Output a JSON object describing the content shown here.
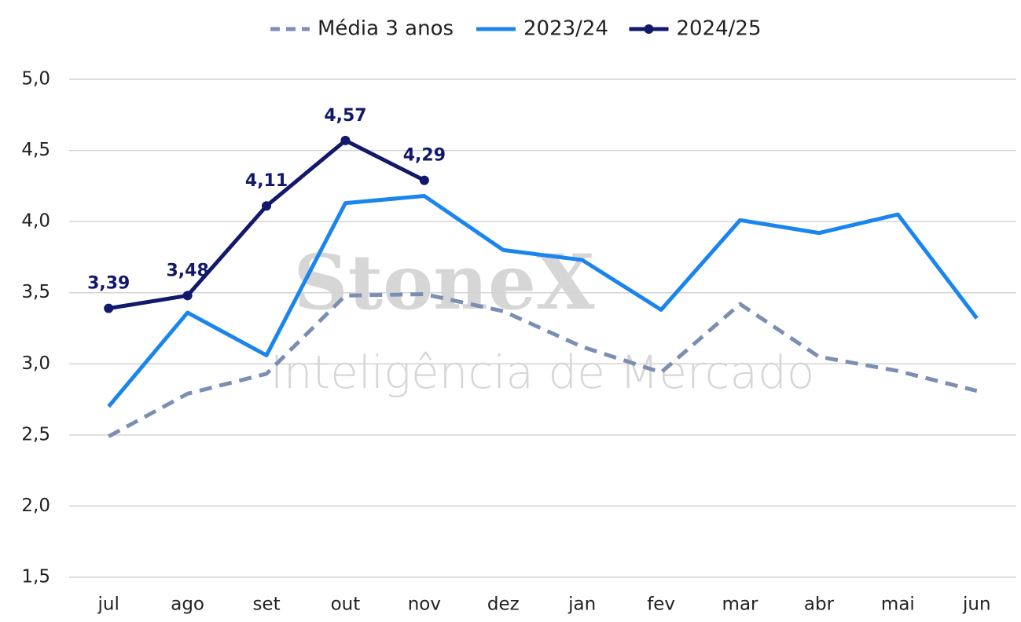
{
  "chart_data": {
    "type": "line",
    "watermark": {
      "brand": "StoneX",
      "tagline": "Inteligência de Mercado"
    },
    "categories": [
      "jul",
      "ago",
      "set",
      "out",
      "nov",
      "dez",
      "jan",
      "fev",
      "mar",
      "abr",
      "mai",
      "jun"
    ],
    "series": [
      {
        "name": "Média 3 anos",
        "color": "#7a8fb3",
        "dashed": true,
        "markers": false,
        "values": [
          2.49,
          2.79,
          2.93,
          3.48,
          3.49,
          3.37,
          3.12,
          2.94,
          3.42,
          3.05,
          2.95,
          2.81
        ]
      },
      {
        "name": "2023/24",
        "color": "#1a85ee",
        "dashed": false,
        "markers": false,
        "values": [
          2.7,
          3.36,
          3.06,
          4.13,
          4.18,
          3.8,
          3.73,
          3.38,
          4.01,
          3.92,
          4.05,
          3.32
        ]
      },
      {
        "name": "2024/25",
        "color": "#12196b",
        "dashed": false,
        "markers": true,
        "values": [
          3.39,
          3.48,
          4.11,
          4.57,
          4.29,
          null,
          null,
          null,
          null,
          null,
          null,
          null
        ],
        "value_labels": [
          "3,39",
          "3,48",
          "4,11",
          "4,57",
          "4,29",
          null,
          null,
          null,
          null,
          null,
          null,
          null
        ]
      }
    ],
    "ylim": [
      1.5,
      5.0
    ],
    "yticks": [
      {
        "value": 1.5,
        "label": "1,5"
      },
      {
        "value": 2.0,
        "label": "2,0"
      },
      {
        "value": 2.5,
        "label": "2,5"
      },
      {
        "value": 3.0,
        "label": "3,0"
      },
      {
        "value": 3.5,
        "label": "3,5"
      },
      {
        "value": 4.0,
        "label": "4,0"
      },
      {
        "value": 4.5,
        "label": "4,5"
      },
      {
        "value": 5.0,
        "label": "5,0"
      }
    ],
    "grid": true
  }
}
